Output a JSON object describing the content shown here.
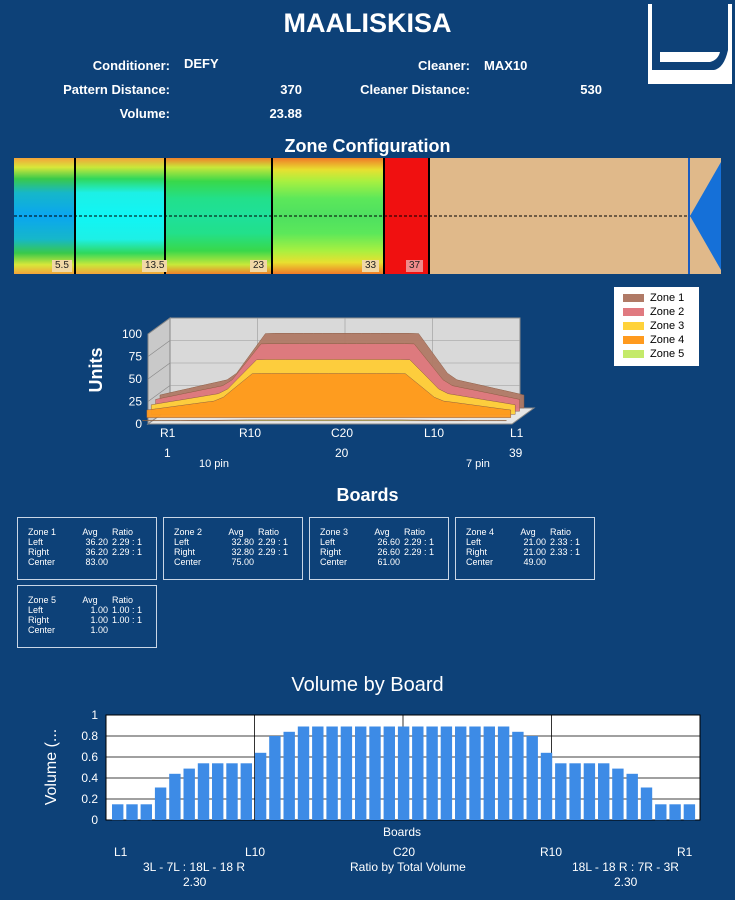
{
  "header": {
    "title": "MAALISKISA",
    "conditioner_label": "Conditioner:",
    "conditioner_value": "DEFY",
    "cleaner_label": "Cleaner:",
    "cleaner_value": "MAX10",
    "pattern_distance_label": "Pattern Distance:",
    "pattern_distance_value": "370",
    "cleaner_distance_label": "Cleaner Distance:",
    "cleaner_distance_value": "530",
    "volume_label": "Volume:",
    "volume_value": "23.88"
  },
  "zone_config": {
    "title": "Zone Configuration",
    "markers": [
      "5.5",
      "13.5",
      "23",
      "33",
      "37"
    ]
  },
  "zones_chart": {
    "ylabel": "Units",
    "yticks": [
      "100",
      "75",
      "50",
      "25",
      "0"
    ],
    "xticks": [
      "R1",
      "R10",
      "C20",
      "L10",
      "L1"
    ],
    "board_numbers": [
      "1",
      "20",
      "39"
    ],
    "pin_labels": [
      "10 pin",
      "7 pin"
    ],
    "legend": [
      "Zone 1",
      "Zone 2",
      "Zone 3",
      "Zone 4",
      "Zone 5"
    ],
    "colors": [
      "#b07a66",
      "#e07a80",
      "#ffd23a",
      "#ff9a1e",
      "#c4ea6a"
    ]
  },
  "boards": {
    "title": "Boards",
    "col_avg": "Avg",
    "col_ratio": "Ratio",
    "row_left": "Left",
    "row_right": "Right",
    "row_center": "Center",
    "zones": [
      {
        "name": "Zone 1",
        "left_avg": "36.20",
        "left_ratio": "2.29 : 1",
        "right_avg": "36.20",
        "right_ratio": "2.29 : 1",
        "center": "83.00"
      },
      {
        "name": "Zone 2",
        "left_avg": "32.80",
        "left_ratio": "2.29 : 1",
        "right_avg": "32.80",
        "right_ratio": "2.29 : 1",
        "center": "75.00"
      },
      {
        "name": "Zone 3",
        "left_avg": "26.60",
        "left_ratio": "2.29 : 1",
        "right_avg": "26.60",
        "right_ratio": "2.29 : 1",
        "center": "61.00"
      },
      {
        "name": "Zone 4",
        "left_avg": "21.00",
        "left_ratio": "2.33 : 1",
        "right_avg": "21.00",
        "right_ratio": "2.33 : 1",
        "center": "49.00"
      },
      {
        "name": "Zone 5",
        "left_avg": "1.00",
        "left_ratio": "1.00 : 1",
        "right_avg": "1.00",
        "right_ratio": "1.00 : 1",
        "center": "1.00"
      }
    ]
  },
  "volume": {
    "title": "Volume by Board",
    "ylabel": "Volume (...",
    "xlabel": "Boards",
    "yticks": [
      "1",
      "0.8",
      "0.6",
      "0.4",
      "0.2",
      "0"
    ],
    "xticks": [
      "L1",
      "L10",
      "C20",
      "R10",
      "R1"
    ],
    "left_ratio_label": "3L - 7L : 18L - 18 R",
    "left_ratio_value": "2.30",
    "center_ratio_label": "Ratio by Total Volume",
    "right_ratio_label": "18L - 18 R : 7R - 3R",
    "right_ratio_value": "2.30"
  },
  "chart_data": [
    {
      "type": "area",
      "title": "",
      "ylabel": "Units",
      "ylim": [
        0,
        100
      ],
      "x": [
        "R1",
        "R10",
        "C20",
        "L10",
        "L1"
      ],
      "series": [
        {
          "name": "Zone 1",
          "values": [
            36.2,
            36.2,
            83,
            36.2,
            36.2
          ]
        },
        {
          "name": "Zone 2",
          "values": [
            32.8,
            32.8,
            75,
            32.8,
            32.8
          ]
        },
        {
          "name": "Zone 3",
          "values": [
            26.6,
            26.6,
            61,
            26.6,
            26.6
          ]
        },
        {
          "name": "Zone 4",
          "values": [
            21,
            21,
            49,
            21,
            21
          ]
        },
        {
          "name": "Zone 5",
          "values": [
            1,
            1,
            1,
            1,
            1
          ]
        }
      ],
      "legend": "right"
    },
    {
      "type": "bar",
      "title": "Volume by Board",
      "xlabel": "Boards",
      "ylabel": "Volume (...",
      "ylim": [
        0,
        1
      ],
      "grid": true,
      "color": "#3d8be6",
      "values": [
        0.15,
        0.15,
        0.15,
        0.31,
        0.44,
        0.49,
        0.54,
        0.54,
        0.54,
        0.54,
        0.64,
        0.8,
        0.84,
        0.89,
        0.89,
        0.89,
        0.89,
        0.89,
        0.89,
        0.89,
        0.89,
        0.89,
        0.89,
        0.89,
        0.89,
        0.89,
        0.89,
        0.89,
        0.84,
        0.8,
        0.64,
        0.54,
        0.54,
        0.54,
        0.54,
        0.49,
        0.44,
        0.31,
        0.15,
        0.15,
        0.15
      ]
    }
  ]
}
